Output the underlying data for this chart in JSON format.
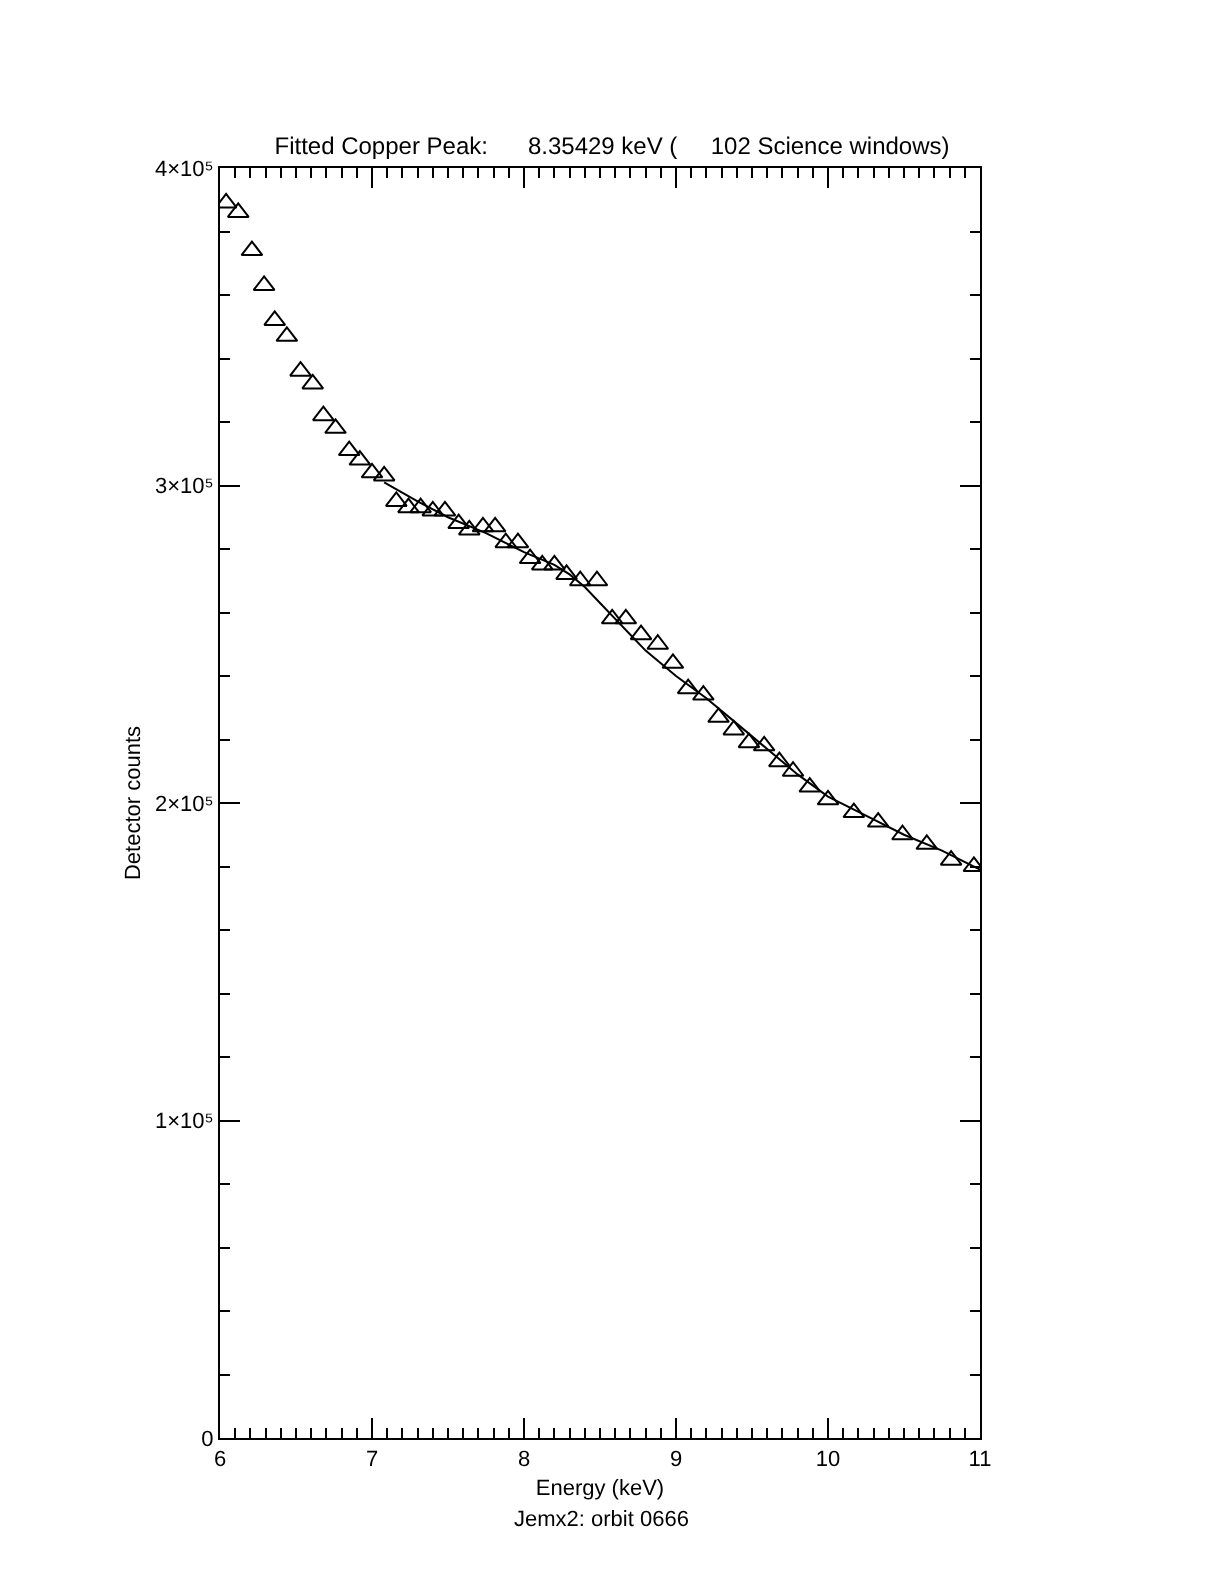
{
  "chart_data": {
    "type": "scatter",
    "title": "Fitted Copper Peak:      8.35429 keV (     102 Science windows)",
    "xlabel": "Energy (keV)",
    "ylabel": "Detector counts",
    "annotations": [
      "Jemx2: orbit 0666"
    ],
    "xlim": [
      6,
      11
    ],
    "ylim": [
      0,
      400000
    ],
    "xticks": [
      6,
      {
        "value": 6.1,
        "label": null
      },
      {
        "value": 6.2,
        "label": null
      },
      {
        "value": 6.3,
        "label": null
      },
      {
        "value": 6.4,
        "label": null
      },
      {
        "value": 6.5,
        "label": null
      },
      {
        "value": 6.6,
        "label": null
      },
      {
        "value": 6.7,
        "label": null
      },
      {
        "value": 6.8,
        "label": null
      },
      {
        "value": 6.9,
        "label": null
      },
      7,
      {
        "value": 7.1,
        "label": null
      },
      {
        "value": 7.2,
        "label": null
      },
      {
        "value": 7.3,
        "label": null
      },
      {
        "value": 7.4,
        "label": null
      },
      {
        "value": 7.5,
        "label": null
      },
      {
        "value": 7.6,
        "label": null
      },
      {
        "value": 7.7,
        "label": null
      },
      {
        "value": 7.8,
        "label": null
      },
      {
        "value": 7.9,
        "label": null
      },
      8,
      {
        "value": 8.1,
        "label": null
      },
      {
        "value": 8.2,
        "label": null
      },
      {
        "value": 8.3,
        "label": null
      },
      {
        "value": 8.4,
        "label": null
      },
      {
        "value": 8.5,
        "label": null
      },
      {
        "value": 8.6,
        "label": null
      },
      {
        "value": 8.7,
        "label": null
      },
      {
        "value": 8.8,
        "label": null
      },
      {
        "value": 8.9,
        "label": null
      },
      9,
      {
        "value": 9.1,
        "label": null
      },
      {
        "value": 9.2,
        "label": null
      },
      {
        "value": 9.3,
        "label": null
      },
      {
        "value": 9.4,
        "label": null
      },
      {
        "value": 9.5,
        "label": null
      },
      {
        "value": 9.6,
        "label": null
      },
      {
        "value": 9.7,
        "label": null
      },
      {
        "value": 9.8,
        "label": null
      },
      {
        "value": 9.9,
        "label": null
      },
      10,
      {
        "value": 10.1,
        "label": null
      },
      {
        "value": 10.2,
        "label": null
      },
      {
        "value": 10.3,
        "label": null
      },
      {
        "value": 10.4,
        "label": null
      },
      {
        "value": 10.5,
        "label": null
      },
      {
        "value": 10.6,
        "label": null
      },
      {
        "value": 10.7,
        "label": null
      },
      {
        "value": 10.8,
        "label": null
      },
      {
        "value": 10.9,
        "label": null
      },
      11
    ],
    "yticks": [
      0,
      {
        "value": 20000,
        "label": null
      },
      {
        "value": 40000,
        "label": null
      },
      {
        "value": 60000,
        "label": null
      },
      {
        "value": 80000,
        "label": null
      },
      {
        "value": 100000,
        "label": "1×10⁵"
      },
      {
        "value": 120000,
        "label": null
      },
      {
        "value": 140000,
        "label": null
      },
      {
        "value": 160000,
        "label": null
      },
      {
        "value": 180000,
        "label": null
      },
      {
        "value": 200000,
        "label": "2×10⁵"
      },
      {
        "value": 220000,
        "label": null
      },
      {
        "value": 240000,
        "label": null
      },
      {
        "value": 260000,
        "label": null
      },
      {
        "value": 280000,
        "label": null
      },
      {
        "value": 300000,
        "label": "3×10⁵"
      },
      {
        "value": 320000,
        "label": null
      },
      {
        "value": 340000,
        "label": null
      },
      {
        "value": 360000,
        "label": null
      },
      {
        "value": 380000,
        "label": null
      },
      {
        "value": 400000,
        "label": "4×10⁵"
      }
    ],
    "grid": false,
    "series": [
      {
        "type": "scatter",
        "color": "#000000",
        "marker": "triangle",
        "x": [
          6.04,
          6.12,
          6.21,
          6.29,
          6.36,
          6.44,
          6.53,
          6.61,
          6.68,
          6.76,
          6.85,
          6.92,
          7.0,
          7.08,
          7.16,
          7.24,
          7.32,
          7.4,
          7.48,
          7.57,
          7.64,
          7.73,
          7.81,
          7.88,
          7.96,
          8.04,
          8.12,
          8.2,
          8.28,
          8.37,
          8.48,
          8.58,
          8.67,
          8.77,
          8.88,
          8.98,
          9.08,
          9.18,
          9.28,
          9.38,
          9.48,
          9.58,
          9.68,
          9.77,
          9.88,
          10.0,
          10.17,
          10.33,
          10.49,
          10.65,
          10.81,
          10.96
        ],
        "values": [
          389000,
          386000,
          374000,
          363000,
          352000,
          347000,
          336000,
          332000,
          322000,
          318000,
          311000,
          308000,
          304000,
          303000,
          295000,
          293000,
          293000,
          292000,
          292000,
          288000,
          286000,
          287000,
          287000,
          282000,
          282000,
          277000,
          275000,
          275000,
          272000,
          270000,
          270000,
          258000,
          258000,
          253000,
          250000,
          244000,
          236000,
          234000,
          227000,
          223000,
          219000,
          218000,
          213000,
          210000,
          205000,
          201000,
          197000,
          194000,
          190000,
          187000,
          182000,
          180000
        ]
      },
      {
        "type": "line",
        "color": "#000000",
        "marker": "none",
        "line_style": "solid",
        "x": [
          7.08,
          7.3,
          7.5,
          7.75,
          8.0,
          8.2,
          8.3,
          8.4,
          8.5,
          8.6,
          8.7,
          8.8,
          9.0,
          9.2,
          9.4,
          9.6,
          9.8,
          10.0,
          10.25,
          10.5,
          10.75,
          11.0
        ],
        "values": [
          301000,
          295000,
          290000,
          285000,
          279000,
          275000,
          272000,
          268000,
          263000,
          258000,
          253000,
          248000,
          240000,
          233000,
          225000,
          217000,
          209000,
          202000,
          196000,
          190000,
          185000,
          179000
        ]
      }
    ]
  }
}
